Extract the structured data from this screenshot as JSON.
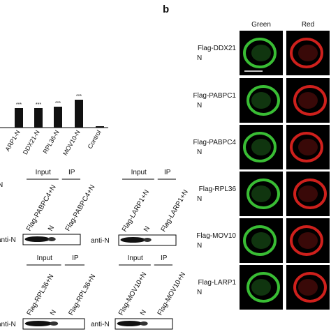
{
  "panel_label": "b",
  "columns": [
    "Green",
    "Red"
  ],
  "rows": [
    {
      "protein": "Flag-DDX21",
      "partner": "N"
    },
    {
      "protein": "Flag-PABPC1",
      "partner": "N"
    },
    {
      "protein": "Flag-PABPC4",
      "partner": "N"
    },
    {
      "protein": "Flag-RPL36",
      "partner": "N"
    },
    {
      "protein": "Flag-MOV10",
      "partner": "N"
    },
    {
      "protein": "Flag-LARP1",
      "partner": "N"
    }
  ],
  "bar_chart": {
    "categories": [
      "ARP1-N",
      "DDX21-N",
      "RPL36-N",
      "MOV10-N",
      "Control"
    ],
    "values": [
      28,
      28,
      30,
      40,
      2
    ],
    "value_labels": [
      "***",
      "***",
      "***",
      "***",
      null
    ]
  },
  "stray_label": "N",
  "blots": [
    {
      "input": "Input",
      "ip": "IP",
      "lanes": [
        "Flag-PABPC4+N",
        "N",
        "Flag-PABPC4+N"
      ],
      "antibody": "anti-N"
    },
    {
      "input": "Input",
      "ip": "IP",
      "lanes": [
        "Flag-LARP1+N",
        "N",
        "Flag-LARP1+N"
      ],
      "antibody": "anti-N"
    },
    {
      "input": "Input",
      "ip": "IP",
      "lanes": [
        "Flag-RPL36+N",
        "N",
        "Flag-RPL36+N"
      ],
      "antibody": "anti-N"
    },
    {
      "input": "Input",
      "ip": "IP",
      "lanes": [
        "Flag-MOV10+N",
        "N",
        "Flag-MOV10+N"
      ],
      "antibody": "anti-N"
    }
  ]
}
